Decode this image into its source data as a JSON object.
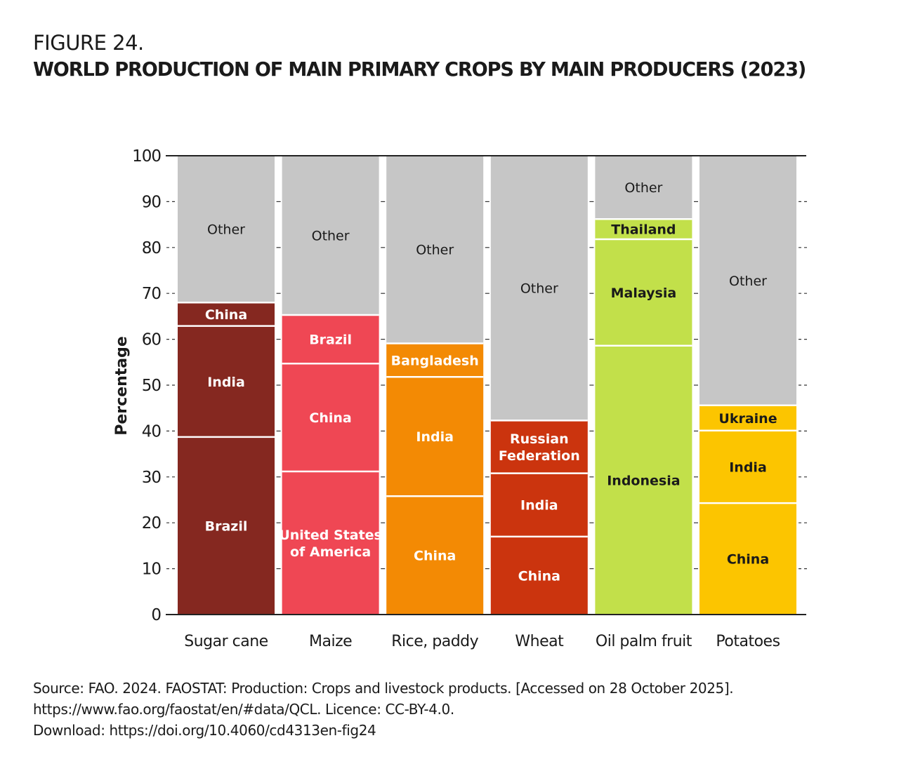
{
  "figure": {
    "label": "FIGURE 24.",
    "title": "WORLD PRODUCTION OF MAIN PRIMARY CROPS BY MAIN PRODUCERS (2023)"
  },
  "chart_data": {
    "type": "bar",
    "stacked": true,
    "title": "WORLD PRODUCTION OF MAIN PRIMARY CROPS BY MAIN PRODUCERS (2023)",
    "xlabel": "",
    "ylabel": "Percentage",
    "ylim": [
      0,
      100
    ],
    "yticks": [
      0,
      10,
      20,
      30,
      40,
      50,
      60,
      70,
      80,
      90,
      100
    ],
    "grid": false,
    "categories": [
      "Sugar cane",
      "Maize",
      "Rice, paddy",
      "Wheat",
      "Oil palm fruit",
      "Potatoes"
    ],
    "stacks": [
      {
        "category": "Sugar cane",
        "segments": [
          {
            "name": "Brazil",
            "value": 38.7,
            "color": "#852820",
            "text_color": "#ffffff"
          },
          {
            "name": "India",
            "value": 24.2,
            "color": "#852820",
            "text_color": "#ffffff"
          },
          {
            "name": "China",
            "value": 5.1,
            "color": "#852820",
            "text_color": "#ffffff"
          },
          {
            "name": "Other",
            "value": 32.0,
            "color": "#c6c6c6",
            "text_color": "#1a1a1a"
          }
        ]
      },
      {
        "category": "Maize",
        "segments": [
          {
            "name": "United States of America",
            "value": 31.2,
            "color": "#ef4754",
            "text_color": "#ffffff"
          },
          {
            "name": "China",
            "value": 23.5,
            "color": "#ef4754",
            "text_color": "#ffffff"
          },
          {
            "name": "Brazil",
            "value": 10.6,
            "color": "#ef4754",
            "text_color": "#ffffff"
          },
          {
            "name": "Other",
            "value": 34.7,
            "color": "#c6c6c6",
            "text_color": "#1a1a1a"
          }
        ]
      },
      {
        "category": "Rice, paddy",
        "segments": [
          {
            "name": "China",
            "value": 25.8,
            "color": "#f38a04",
            "text_color": "#ffffff"
          },
          {
            "name": "India",
            "value": 26.0,
            "color": "#f38a04",
            "text_color": "#ffffff"
          },
          {
            "name": "Bangladesh",
            "value": 7.3,
            "color": "#f38a04",
            "text_color": "#ffffff"
          },
          {
            "name": "Other",
            "value": 40.9,
            "color": "#c6c6c6",
            "text_color": "#1a1a1a"
          }
        ]
      },
      {
        "category": "Wheat",
        "segments": [
          {
            "name": "China",
            "value": 17.0,
            "color": "#cb340e",
            "text_color": "#ffffff"
          },
          {
            "name": "India",
            "value": 13.8,
            "color": "#cb340e",
            "text_color": "#ffffff"
          },
          {
            "name": "Russian Federation",
            "value": 11.5,
            "color": "#cb340e",
            "text_color": "#ffffff"
          },
          {
            "name": "Other",
            "value": 57.7,
            "color": "#c6c6c6",
            "text_color": "#1a1a1a"
          }
        ]
      },
      {
        "category": "Oil palm fruit",
        "segments": [
          {
            "name": "Indonesia",
            "value": 58.6,
            "color": "#c2e04a",
            "text_color": "#1a1a1a"
          },
          {
            "name": "Malaysia",
            "value": 23.2,
            "color": "#c2e04a",
            "text_color": "#1a1a1a"
          },
          {
            "name": "Thailand",
            "value": 4.4,
            "color": "#c2e04a",
            "text_color": "#1a1a1a"
          },
          {
            "name": "Other",
            "value": 13.8,
            "color": "#c6c6c6",
            "text_color": "#1a1a1a"
          }
        ]
      },
      {
        "category": "Potatoes",
        "segments": [
          {
            "name": "China",
            "value": 24.3,
            "color": "#fcc500",
            "text_color": "#1a1a1a"
          },
          {
            "name": "India",
            "value": 15.8,
            "color": "#fcc500",
            "text_color": "#1a1a1a"
          },
          {
            "name": "Ukraine",
            "value": 5.5,
            "color": "#fcc500",
            "text_color": "#1a1a1a"
          },
          {
            "name": "Other",
            "value": 54.4,
            "color": "#c6c6c6",
            "text_color": "#1a1a1a"
          }
        ]
      }
    ]
  },
  "source": {
    "line1": "Source: FAO. 2024. FAOSTAT: Production: Crops and livestock products. [Accessed on 28 October 2025].",
    "line2": "https://www.fao.org/faostat/en/#data/QCL. Licence: CC-BY-4.0.",
    "line3": "Download: https://doi.org/10.4060/cd4313en-fig24"
  }
}
